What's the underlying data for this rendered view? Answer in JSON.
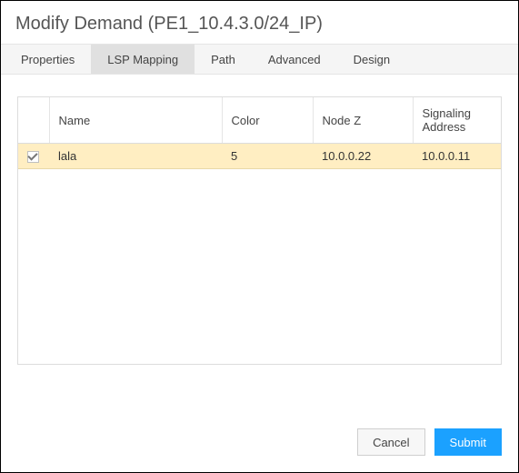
{
  "dialog": {
    "title": "Modify Demand (PE1_10.4.3.0/24_IP)"
  },
  "tabs": {
    "items": [
      {
        "label": "Properties",
        "active": false
      },
      {
        "label": "LSP Mapping",
        "active": true
      },
      {
        "label": "Path",
        "active": false
      },
      {
        "label": "Advanced",
        "active": false
      },
      {
        "label": "Design",
        "active": false
      }
    ]
  },
  "table": {
    "columns": {
      "name": "Name",
      "color": "Color",
      "nodez": "Node Z",
      "signaling": "Signaling Address"
    },
    "rows": [
      {
        "checked": true,
        "name": "lala",
        "color": "5",
        "nodez": "10.0.0.22",
        "signaling": "10.0.0.11"
      }
    ]
  },
  "footer": {
    "cancel": "Cancel",
    "submit": "Submit"
  },
  "colors": {
    "row_selected_bg": "#ffeec2",
    "primary_btn_bg": "#1ba1ff",
    "border": "#dcdcdc",
    "tab_active_bg": "#e0e0e0",
    "tab_bg": "#f5f5f5"
  }
}
